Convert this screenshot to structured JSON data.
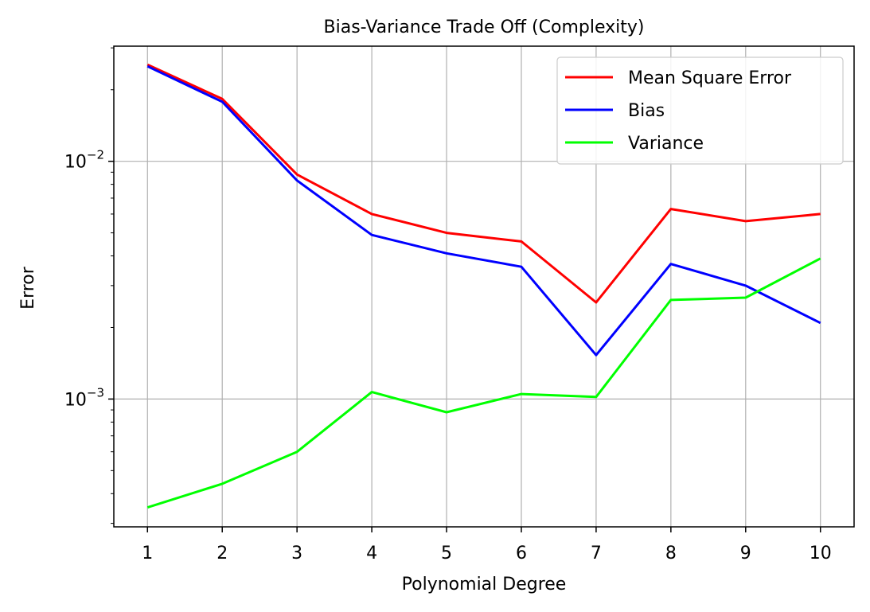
{
  "chart_data": {
    "type": "line",
    "title": "Bias-Variance Trade Off (Complexity)",
    "xlabel": "Polynomial Degree",
    "ylabel": "Error",
    "x": [
      1,
      2,
      3,
      4,
      5,
      6,
      7,
      8,
      9,
      10
    ],
    "x_tick_labels": [
      "1",
      "2",
      "3",
      "4",
      "5",
      "6",
      "7",
      "8",
      "9",
      "10"
    ],
    "yscale": "log",
    "ylim": [
      0.00029,
      0.0305
    ],
    "y_major_ticks": [
      {
        "value": 0.01,
        "base": "10",
        "exp": "−2"
      },
      {
        "value": 0.001,
        "base": "10",
        "exp": "−3"
      }
    ],
    "grid": true,
    "legend_position": "top-right",
    "series": [
      {
        "name": "Mean Square Error",
        "color": "#ff0000",
        "values": [
          0.0255,
          0.0183,
          0.0088,
          0.006,
          0.005,
          0.0046,
          0.00255,
          0.0063,
          0.0056,
          0.006
        ]
      },
      {
        "name": "Bias",
        "color": "#0000ff",
        "values": [
          0.0251,
          0.0178,
          0.0083,
          0.0049,
          0.0041,
          0.0036,
          0.00153,
          0.0037,
          0.003,
          0.00209
        ]
      },
      {
        "name": "Variance",
        "color": "#00ff00",
        "values": [
          0.00035,
          0.00044,
          0.0006,
          0.00107,
          0.00088,
          0.00105,
          0.00102,
          0.00261,
          0.00267,
          0.0039
        ]
      }
    ]
  }
}
